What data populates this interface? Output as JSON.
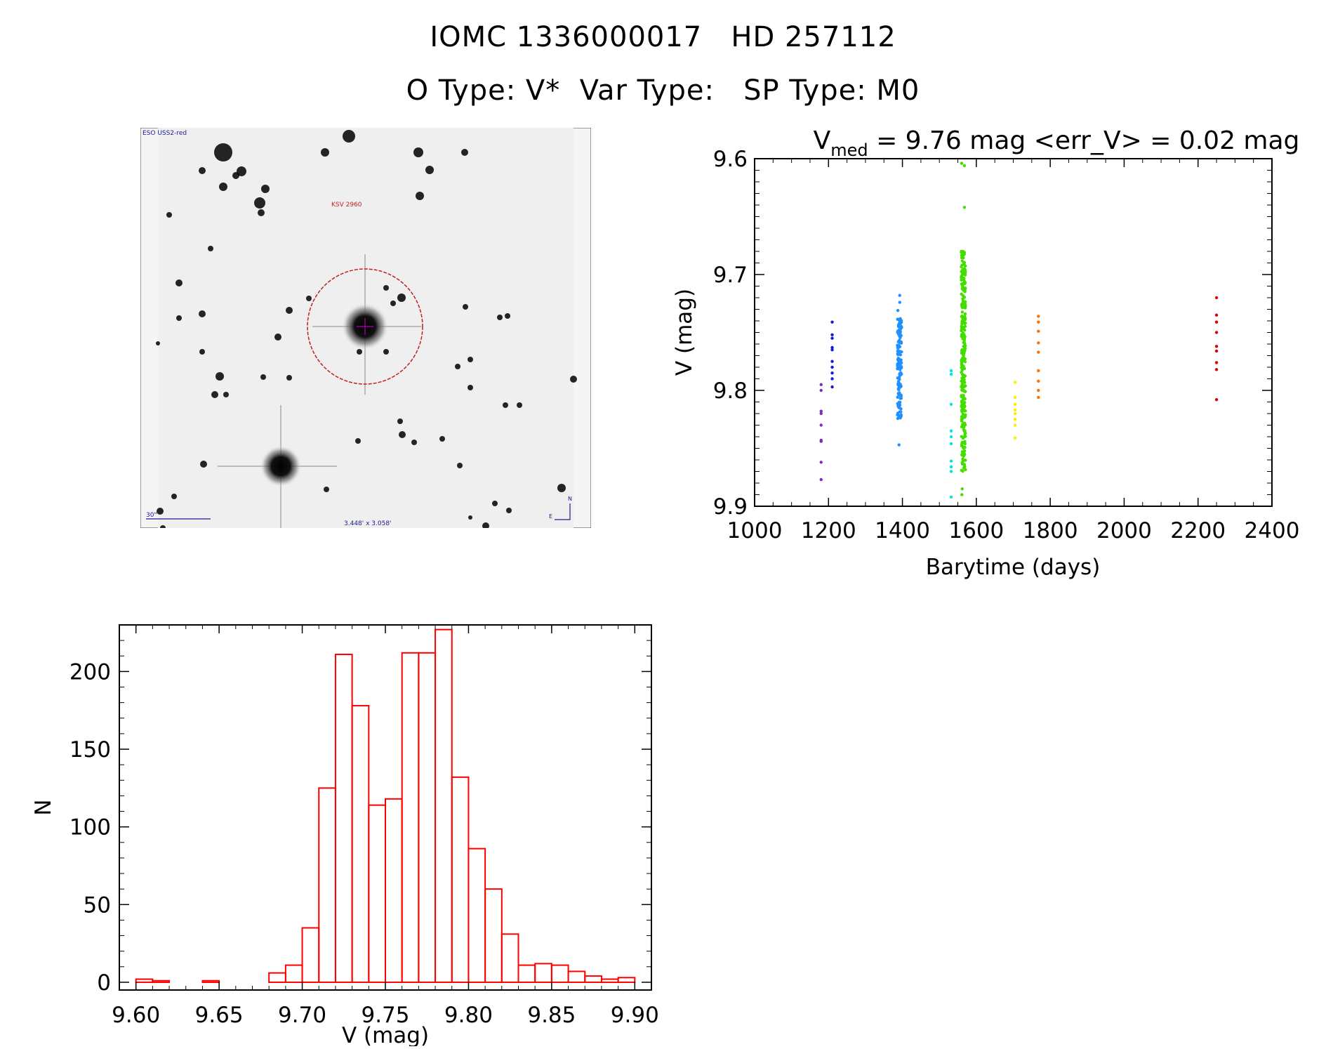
{
  "header": {
    "title_line1": "IOMC 1336000017   HD 257112",
    "title_line2": "O Type: V*  Var Type:   SP Type: M0"
  },
  "finder_image": {
    "top_left_label": "ESO USS2-red",
    "target_label": "KSV 2960",
    "scale_label": "30\"",
    "size_label": "3.448' x 3.058'",
    "compass_north": "N",
    "compass_east": "E"
  },
  "chart_data": [
    {
      "type": "scatter",
      "title_main": "V",
      "title_sub": "med",
      "title_rest": " = 9.76 mag <err_V> = 0.02 mag",
      "xlabel": "Barytime (days)",
      "ylabel": "V (mag)",
      "xlim": [
        1000,
        2400
      ],
      "ylim": [
        9.9,
        9.6
      ],
      "xticks": [
        "1000",
        "1200",
        "1400",
        "1600",
        "1800",
        "2000",
        "2200",
        "2400"
      ],
      "yticks": [
        "9.6",
        "9.7",
        "9.8",
        "9.9"
      ],
      "groups": [
        {
          "color": "#7b2fb5",
          "x": 1180,
          "y": [
            9.795,
            9.8,
            9.818,
            9.82,
            9.83,
            9.843,
            9.844,
            9.862,
            9.877
          ]
        },
        {
          "color": "#1a1ad2",
          "x": 1210,
          "y": [
            9.741,
            9.752,
            9.755,
            9.763,
            9.765,
            9.775,
            9.78,
            9.785,
            9.79,
            9.797
          ]
        },
        {
          "color": "#1e90ff",
          "x": 1392,
          "ymin": 9.738,
          "ymax": 9.825,
          "n": 140,
          "extra": [
            9.718,
            9.724,
            9.731,
            9.847
          ]
        },
        {
          "color": "#00e5e5",
          "x": 1532,
          "y": [
            9.783,
            9.786,
            9.812,
            9.835,
            9.84,
            9.846,
            9.861,
            9.866,
            9.87,
            9.892
          ]
        },
        {
          "color": "#44dd00",
          "x": 1565,
          "ymin": 9.68,
          "ymax": 9.87,
          "n": 300,
          "extra": [
            9.604,
            9.606,
            9.642,
            9.885,
            9.89
          ]
        },
        {
          "color": "#ffee00",
          "x": 1705,
          "y": [
            9.793,
            9.806,
            9.812,
            9.817,
            9.82,
            9.825,
            9.83,
            9.841
          ]
        },
        {
          "color": "#ff7000",
          "x": 1768,
          "y": [
            9.736,
            9.741,
            9.749,
            9.759,
            9.767,
            9.783,
            9.792,
            9.8,
            9.806
          ]
        },
        {
          "color": "#e00000",
          "x": 2250,
          "y": [
            9.72,
            9.735,
            9.741,
            9.75,
            9.762,
            9.766,
            9.776,
            9.782,
            9.808
          ]
        }
      ]
    },
    {
      "type": "bar",
      "xlabel": "V (mag)",
      "ylabel": "N",
      "xlim": [
        9.59,
        9.91
      ],
      "ylim": [
        -5,
        230
      ],
      "xticks": [
        "9.60",
        "9.65",
        "9.70",
        "9.75",
        "9.80",
        "9.85",
        "9.90"
      ],
      "yticks": [
        "0",
        "50",
        "100",
        "150",
        "200"
      ],
      "bin_edges": [
        9.6,
        9.61,
        9.62,
        9.63,
        9.64,
        9.65,
        9.66,
        9.67,
        9.68,
        9.69,
        9.7,
        9.71,
        9.72,
        9.73,
        9.74,
        9.75,
        9.76,
        9.77,
        9.78,
        9.79,
        9.8,
        9.81,
        9.82,
        9.83,
        9.84,
        9.85,
        9.86,
        9.87,
        9.88,
        9.89,
        9.9
      ],
      "values": [
        2,
        1,
        0,
        0,
        1,
        0,
        0,
        0,
        6,
        11,
        35,
        125,
        211,
        178,
        114,
        118,
        212,
        212,
        227,
        132,
        86,
        60,
        31,
        11,
        12,
        11,
        7,
        4,
        2,
        3
      ],
      "bar_color": "#ff0000"
    }
  ]
}
